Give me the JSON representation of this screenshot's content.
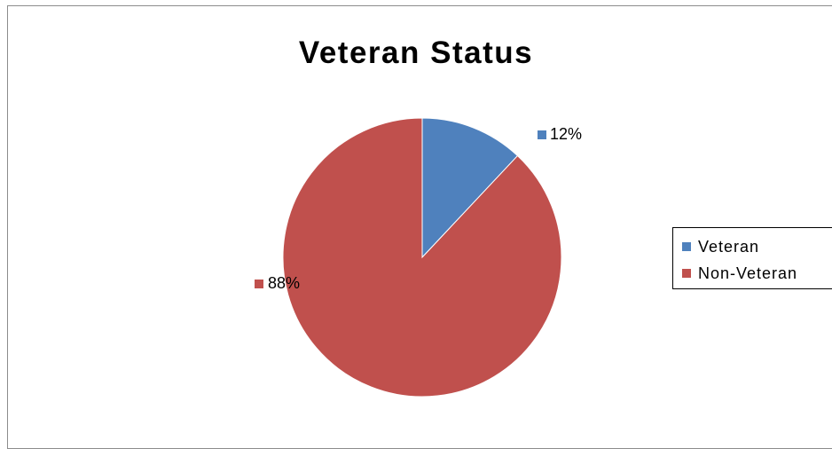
{
  "chart_data": {
    "type": "pie",
    "title": "Veteran Status",
    "categories": [
      "Veteran",
      "Non-Veteran"
    ],
    "values": [
      12,
      88
    ],
    "unit": "%",
    "data_labels": [
      "12%",
      "88%"
    ],
    "colors": [
      "#4f81bd",
      "#c0504d"
    ],
    "legend_position": "right"
  },
  "legend": {
    "items": [
      {
        "label": "Veteran",
        "color": "#4f81bd"
      },
      {
        "label": "Non-Veteran",
        "color": "#c0504d"
      }
    ]
  }
}
